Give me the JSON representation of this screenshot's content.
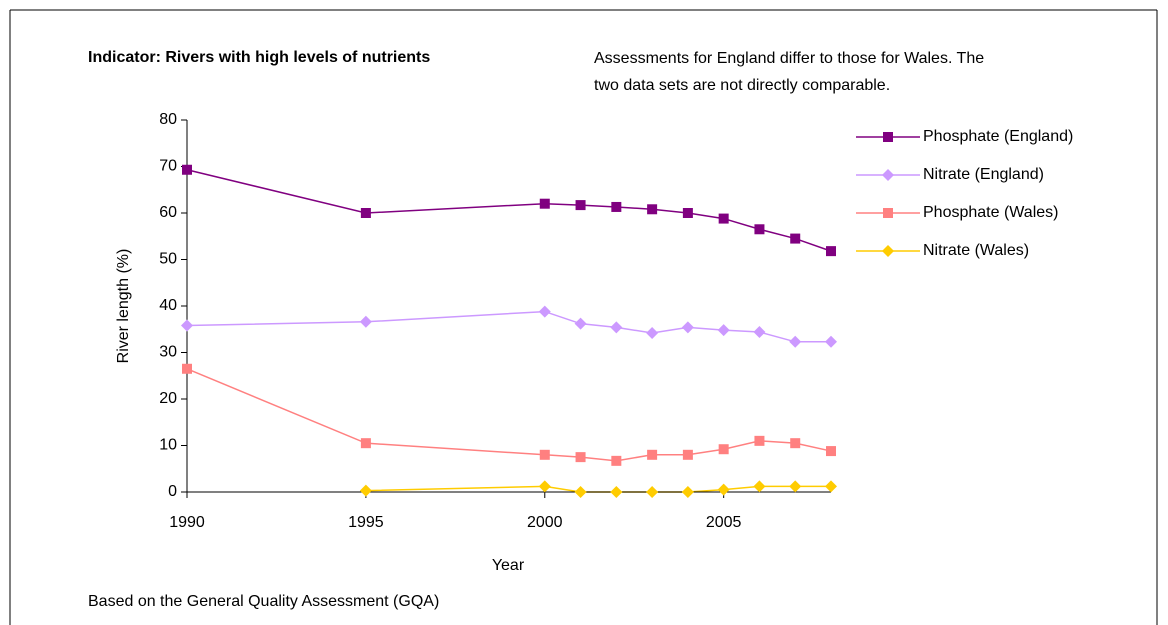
{
  "chart_data": {
    "type": "line",
    "title": "Indicator: Rivers with high levels of nutrients",
    "annotation": "Assessments for England differ to those for Wales. The two data sets are not directly comparable.",
    "footnote": "Based on the General Quality Assessment (GQA)",
    "x_label": "Year",
    "y_label": "River length (%)",
    "x": [
      1990,
      1995,
      2000,
      2001,
      2002,
      2003,
      2004,
      2005,
      2006,
      2007,
      2008
    ],
    "xlim": [
      1990,
      2008
    ],
    "xticks": [
      1990,
      1995,
      2000,
      2005
    ],
    "ylim": [
      0,
      80
    ],
    "yticks": [
      0,
      10,
      20,
      30,
      40,
      50,
      60,
      70,
      80
    ],
    "legend": "right",
    "series": [
      {
        "name": "Phosphate (England)",
        "color": "#800080",
        "marker": "square",
        "values": [
          69.3,
          60,
          62,
          61.7,
          61.3,
          60.8,
          60,
          58.8,
          56.5,
          54.5,
          51.8
        ]
      },
      {
        "name": "Nitrate (England)",
        "color": "#cc99ff",
        "marker": "diamond",
        "values": [
          35.8,
          36.6,
          38.8,
          36.2,
          35.4,
          34.2,
          35.4,
          34.8,
          34.4,
          32.3,
          32.3
        ]
      },
      {
        "name": "Phosphate (Wales)",
        "color": "#ff8080",
        "marker": "square",
        "values": [
          26.5,
          10.5,
          8,
          7.5,
          6.7,
          8,
          8,
          9.2,
          11,
          10.5,
          8.8
        ]
      },
      {
        "name": "Nitrate (Wales)",
        "color": "#ffcc00",
        "marker": "diamond",
        "values": [
          null,
          0.3,
          1.2,
          0,
          0,
          0,
          0,
          0.5,
          1.2,
          1.2,
          1.2
        ]
      }
    ]
  }
}
